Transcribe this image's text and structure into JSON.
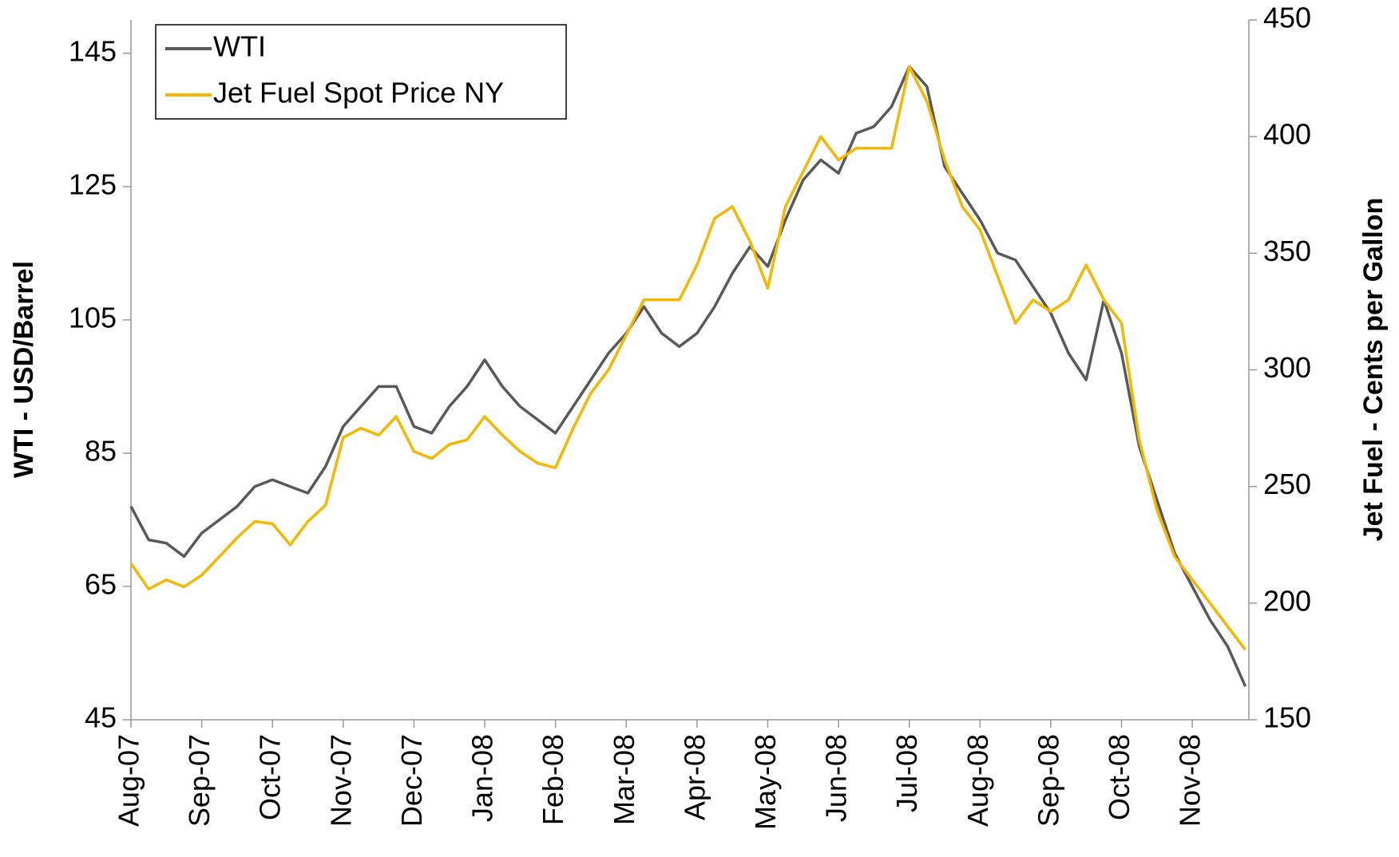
{
  "chart_data": {
    "type": "line",
    "y_label": "WTI - USD/Barrel",
    "y2_label": "Jet Fuel - Cents per Gallon",
    "x": [
      0,
      0.25,
      0.5,
      0.75,
      1,
      1.25,
      1.5,
      1.75,
      2,
      2.25,
      2.5,
      2.75,
      3,
      3.25,
      3.5,
      3.75,
      4,
      4.25,
      4.5,
      4.75,
      5,
      5.25,
      5.5,
      5.75,
      6,
      6.25,
      6.5,
      6.75,
      7,
      7.25,
      7.5,
      7.75,
      8,
      8.25,
      8.5,
      8.75,
      9,
      9.25,
      9.5,
      9.75,
      10,
      10.25,
      10.5,
      10.75,
      11,
      11.25,
      11.5,
      11.75,
      12,
      12.25,
      12.5,
      12.75,
      13,
      13.25,
      13.5,
      13.75,
      14,
      14.25,
      14.5,
      14.75,
      15,
      15.25,
      15.5,
      15.75
    ],
    "xlim": [
      0,
      15.8
    ],
    "xticks": [
      {
        "value": 0,
        "label": "Aug-07"
      },
      {
        "value": 1,
        "label": "Sep-07"
      },
      {
        "value": 2,
        "label": "Oct-07"
      },
      {
        "value": 3,
        "label": "Nov-07"
      },
      {
        "value": 4,
        "label": "Dec-07"
      },
      {
        "value": 5,
        "label": "Jan-08"
      },
      {
        "value": 6,
        "label": "Feb-08"
      },
      {
        "value": 7,
        "label": "Mar-08"
      },
      {
        "value": 8,
        "label": "Apr-08"
      },
      {
        "value": 9,
        "label": "May-08"
      },
      {
        "value": 10,
        "label": "Jun-08"
      },
      {
        "value": 11,
        "label": "Jul-08"
      },
      {
        "value": 12,
        "label": "Aug-08"
      },
      {
        "value": 13,
        "label": "Sep-08"
      },
      {
        "value": 14,
        "label": "Oct-08"
      },
      {
        "value": 15,
        "label": "Nov-08"
      }
    ],
    "ylim": [
      45,
      150
    ],
    "yticks": [
      45,
      65,
      85,
      105,
      125,
      145
    ],
    "y2lim": [
      150,
      450
    ],
    "y2ticks": [
      150,
      200,
      250,
      300,
      350,
      400,
      450
    ],
    "legend": "upper left",
    "series": [
      {
        "name": "WTI",
        "color": "#595959",
        "values": [
          77,
          72,
          71.5,
          69.5,
          73,
          75,
          77,
          80,
          81,
          80,
          79,
          83,
          89,
          92,
          95,
          95,
          89,
          88,
          92,
          95,
          99,
          95,
          92,
          90,
          88,
          92,
          96,
          100,
          103,
          107,
          103,
          101,
          103,
          107,
          112,
          116,
          113,
          120,
          126,
          129,
          127,
          133,
          134,
          137,
          143,
          140,
          128,
          124,
          120,
          115,
          114,
          110,
          106,
          100,
          96,
          108,
          100,
          86,
          78,
          70,
          65,
          60,
          56,
          50
        ]
      },
      {
        "name": "Jet Fuel Spot Price NY",
        "color": "#f5b800",
        "axis": "y2",
        "values": [
          217,
          206,
          210,
          207,
          212,
          220,
          228,
          235,
          234,
          225,
          235,
          242,
          271,
          275,
          272,
          280,
          265,
          262,
          268,
          270,
          280,
          272,
          265,
          260,
          258,
          275,
          290,
          300,
          315,
          330,
          330,
          330,
          345,
          365,
          370,
          355,
          335,
          370,
          385,
          400,
          390,
          395,
          395,
          395,
          430,
          415,
          390,
          370,
          360,
          340,
          320,
          330,
          325,
          330,
          345,
          330,
          320,
          270,
          240,
          220,
          210,
          200,
          190,
          180
        ]
      }
    ]
  }
}
